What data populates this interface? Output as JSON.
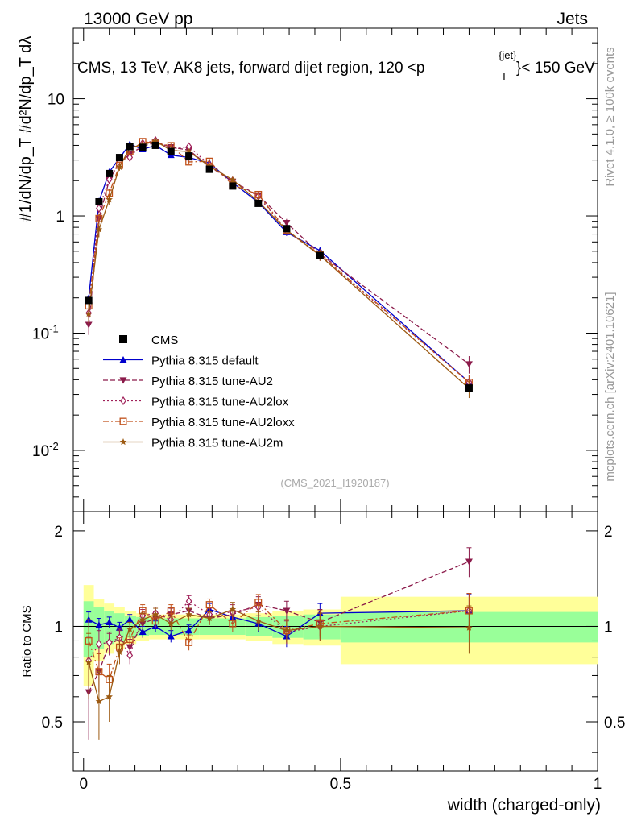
{
  "header": {
    "left": "13000 GeV pp",
    "right": "Jets"
  },
  "side_labels": {
    "rivet": "Rivet 4.1.0, ≥ 100k events",
    "mcplots": "mcplots.cern.ch [arXiv:2401.10621]"
  },
  "chart_data": {
    "type": "line",
    "title_main": "CMS, 13 TeV, AK8 jets, forward dijet region, 120 <p",
    "title_sup": "{jet}",
    "title_sub": "T",
    "title_tail": "}< 150 GeV",
    "ylabel": "#1/dN/dp_T #d²N/dp_T dλ",
    "xlabel": "width (charged-only)",
    "ratio_ylabel": "Ratio to CMS",
    "watermark": "(CMS_2021_I1920187)",
    "scale": "log",
    "ylim": [
      0.003,
      40
    ],
    "xlim": [
      -0.02,
      1.0
    ],
    "ratio_ylim": [
      0.35,
      2.3
    ],
    "x_ticks": [
      "0",
      "0.5",
      "1"
    ],
    "y_ticks_top": [
      {
        "base": "10",
        "exp": "-2"
      },
      {
        "base": "10",
        "exp": "-1"
      },
      {
        "base": "1",
        "exp": ""
      },
      {
        "base": "10",
        "exp": ""
      }
    ],
    "ratio_ticks": [
      "0.5",
      "1",
      "2"
    ],
    "data": {
      "name": "CMS",
      "x": [
        0.01,
        0.03,
        0.05,
        0.07,
        0.09,
        0.115,
        0.14,
        0.17,
        0.205,
        0.245,
        0.29,
        0.34,
        0.395,
        0.46,
        0.75
      ],
      "y": [
        0.19,
        1.32,
        2.3,
        3.15,
        3.9,
        3.85,
        4.0,
        3.55,
        3.25,
        2.5,
        1.8,
        1.28,
        0.78,
        0.46,
        0.034
      ],
      "ratio_band_inner": [
        0.2,
        0.15,
        0.12,
        0.1,
        0.08,
        0.07,
        0.06,
        0.06,
        0.06,
        0.06,
        0.06,
        0.07,
        0.08,
        0.09,
        0.11
      ],
      "ratio_band_outer": [
        0.35,
        0.22,
        0.18,
        0.15,
        0.12,
        0.1,
        0.09,
        0.09,
        0.09,
        0.09,
        0.09,
        0.1,
        0.12,
        0.13,
        0.24
      ]
    },
    "series": [
      {
        "name": "Pythia 8.315 default",
        "color": "#0000cc",
        "dash": "",
        "marker": "triangle-up",
        "ratio": [
          1.05,
          1.01,
          1.03,
          0.99,
          1.05,
          0.96,
          1.0,
          0.93,
          0.97,
          1.13,
          1.07,
          1.02,
          0.93,
          1.1,
          1.12
        ],
        "err": [
          0.06,
          0.05,
          0.04,
          0.04,
          0.04,
          0.04,
          0.04,
          0.04,
          0.04,
          0.05,
          0.05,
          0.06,
          0.07,
          0.08,
          0.14
        ]
      },
      {
        "name": "Pythia 8.315 tune-AU2",
        "color": "#8b1a4a",
        "dash": "6,3",
        "marker": "triangle-down",
        "ratio": [
          0.62,
          0.72,
          0.88,
          0.91,
          0.86,
          1.02,
          1.06,
          1.09,
          1.12,
          1.06,
          1.09,
          1.17,
          1.12,
          1.03,
          1.6
        ],
        "err": [
          0.18,
          0.1,
          0.07,
          0.06,
          0.05,
          0.05,
          0.05,
          0.05,
          0.05,
          0.05,
          0.06,
          0.07,
          0.08,
          0.1,
          0.17
        ]
      },
      {
        "name": "Pythia 8.315 tune-AU2lox",
        "color": "#a0215a",
        "dash": "2,3",
        "marker": "diamond",
        "ratio": [
          0.78,
          0.88,
          0.89,
          0.92,
          0.81,
          1.08,
          1.1,
          1.05,
          1.2,
          1.09,
          1.11,
          1.15,
          0.96,
          1.0,
          1.12
        ],
        "err": [
          0.15,
          0.09,
          0.07,
          0.06,
          0.05,
          0.05,
          0.05,
          0.05,
          0.05,
          0.05,
          0.06,
          0.07,
          0.08,
          0.1,
          0.15
        ]
      },
      {
        "name": "Pythia 8.315 tune-AU2loxx",
        "color": "#c0501a",
        "dash": "7,3,2,3",
        "marker": "square-open",
        "ratio": [
          0.9,
          0.72,
          0.68,
          0.86,
          0.91,
          1.12,
          1.04,
          1.12,
          0.89,
          1.17,
          1.02,
          1.19,
          0.97,
          1.02,
          1.12
        ],
        "err": [
          0.15,
          0.1,
          0.08,
          0.06,
          0.05,
          0.05,
          0.05,
          0.05,
          0.05,
          0.05,
          0.06,
          0.07,
          0.08,
          0.1,
          0.15
        ]
      },
      {
        "name": "Pythia 8.315 tune-AU2m",
        "color": "#9c5a12",
        "dash": "",
        "marker": "star",
        "ratio": [
          0.77,
          0.58,
          0.6,
          0.83,
          0.98,
          1.05,
          1.09,
          1.02,
          1.09,
          1.06,
          1.13,
          1.04,
          0.97,
          1.0,
          0.99
        ],
        "err": [
          0.18,
          0.14,
          0.1,
          0.07,
          0.05,
          0.05,
          0.05,
          0.05,
          0.05,
          0.05,
          0.06,
          0.07,
          0.08,
          0.1,
          0.17
        ]
      }
    ]
  }
}
